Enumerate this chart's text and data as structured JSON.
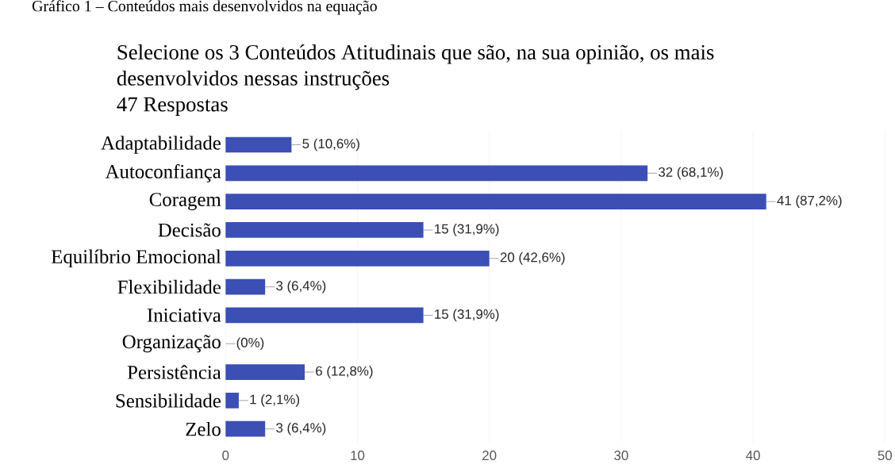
{
  "chart_data": {
    "type": "bar",
    "orientation": "horizontal",
    "title": "Selecione os 3 Conteúdos Atitudinais que são, na sua opinião, os mais desenvolvidos nessas instruções",
    "subtitle": "47 Respostas",
    "annotations": [
      "Gráfico 1 – Conteúdos mais desenvolvidos na equação"
    ],
    "categories": [
      "Adaptabilidade",
      "Autoconfiança",
      "Coragem",
      "Decisão",
      "Equilíbrio Emocional",
      "Flexibilidade",
      "Iniciativa",
      "Organização",
      "Persistência",
      "Sensibilidade",
      "Zelo"
    ],
    "values": [
      5,
      32,
      41,
      15,
      20,
      3,
      15,
      0,
      6,
      1,
      3
    ],
    "value_labels": [
      "5 (10,6%)",
      "32 (68,1%)",
      "41 (87,2%)",
      "15 (31,9%)",
      "20 (42,6%)",
      "3 (6,4%)",
      "15 (31,9%)",
      "(0%)",
      "6 (12,8%)",
      "1 (2,1%)",
      "3 (6,4%)"
    ],
    "color": "#3c4fb5",
    "xlim": [
      0,
      50
    ],
    "xticks": [
      0,
      10,
      20,
      30,
      40,
      50
    ],
    "grid": "x"
  }
}
